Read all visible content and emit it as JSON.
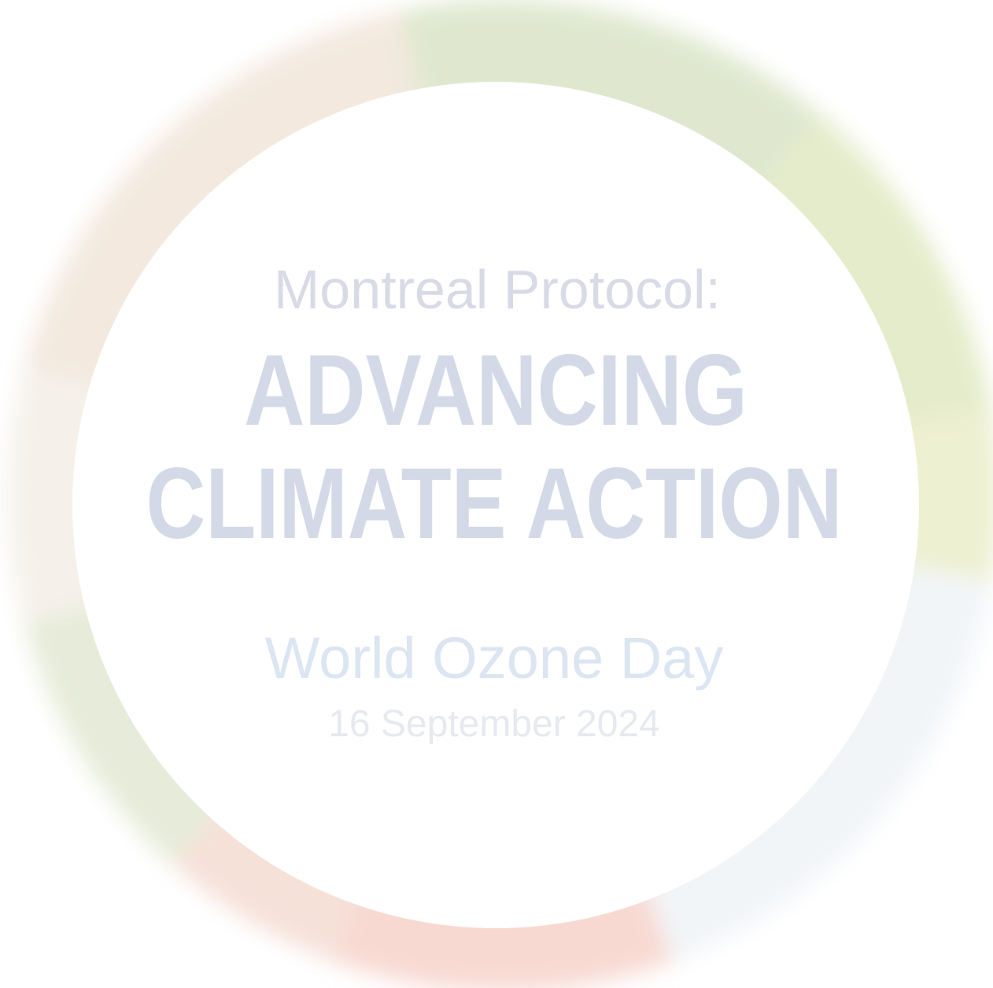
{
  "title": {
    "lead": "Montreal Protocol:",
    "line1": "ADVANCING",
    "line2": "CLIMATE ACTION"
  },
  "event": {
    "name": "World Ozone Day",
    "date": "16 September 2024"
  }
}
